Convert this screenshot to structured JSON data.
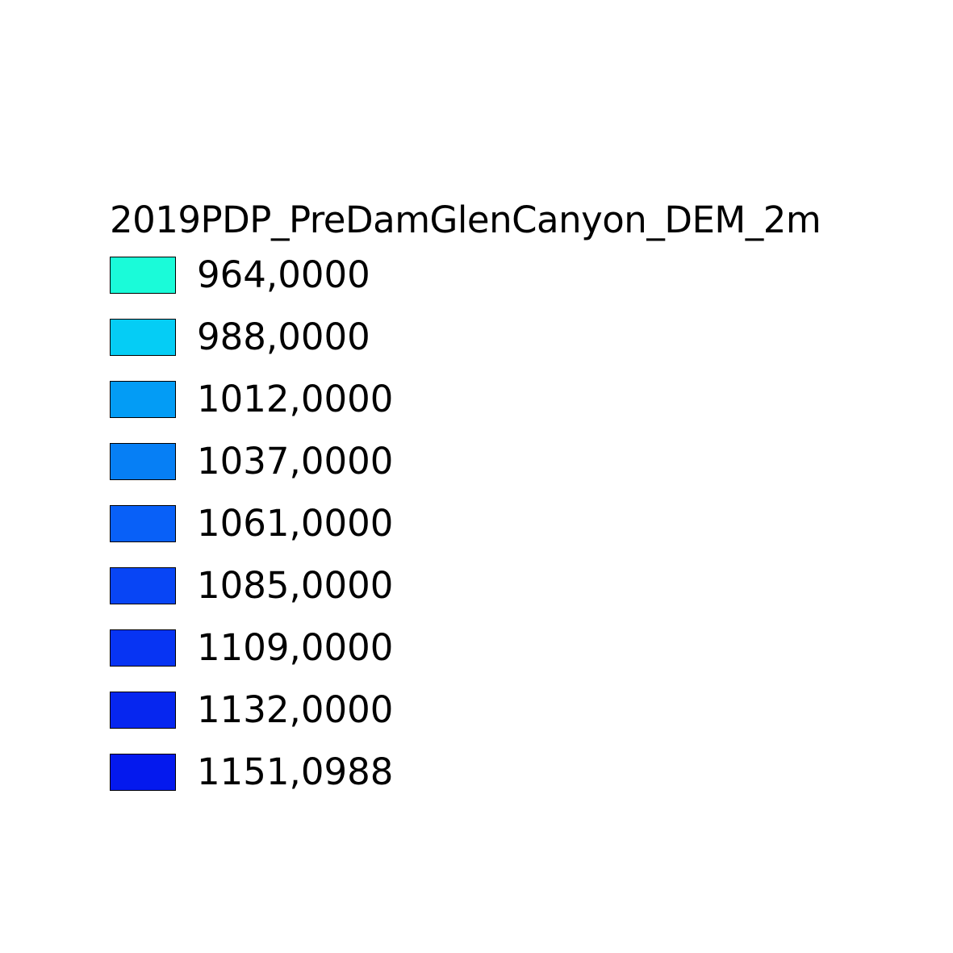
{
  "legend": {
    "title": "2019PDP_PreDamGlenCanyon_DEM_2m",
    "items": [
      {
        "label": "964,0000",
        "color": "#1afbd9"
      },
      {
        "label": "988,0000",
        "color": "#05cdf5"
      },
      {
        "label": "1012,0000",
        "color": "#039cf5"
      },
      {
        "label": "1037,0000",
        "color": "#067ff5"
      },
      {
        "label": "1061,0000",
        "color": "#0860f8"
      },
      {
        "label": "1085,0000",
        "color": "#0845f5"
      },
      {
        "label": "1109,0000",
        "color": "#0734f3"
      },
      {
        "label": "1132,0000",
        "color": "#0626ef"
      },
      {
        "label": "1151,0988",
        "color": "#0419ee"
      }
    ]
  }
}
